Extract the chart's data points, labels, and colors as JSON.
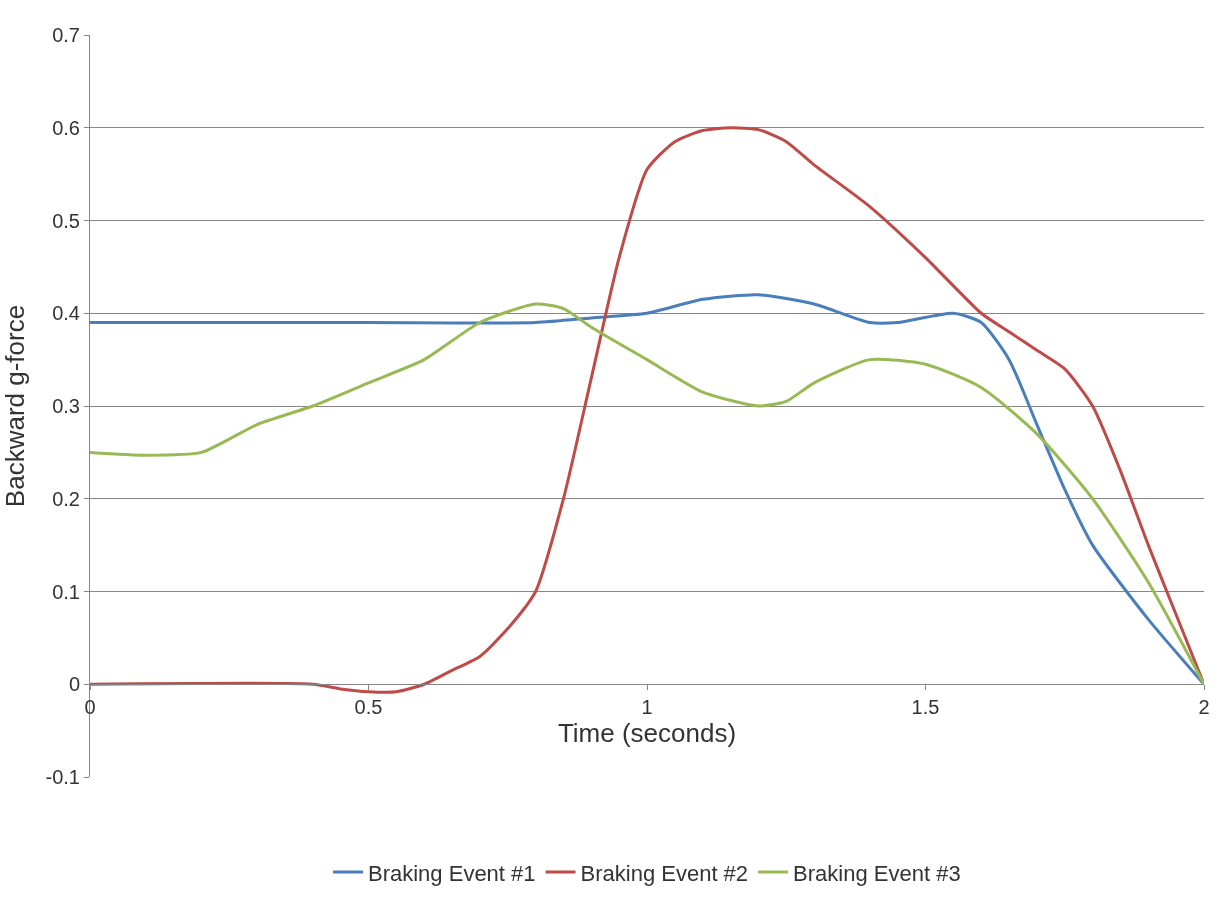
{
  "chart_data": {
    "type": "line",
    "xlabel": "Time (seconds)",
    "ylabel": "Backward g-force",
    "xlim": [
      0,
      2
    ],
    "xticks": [
      0,
      0.5,
      1,
      1.5,
      2
    ],
    "ylim": [
      -0.1,
      0.7
    ],
    "yticks": [
      -0.1,
      0,
      0.1,
      0.2,
      0.3,
      0.4,
      0.5,
      0.6,
      0.7
    ],
    "grid": "y",
    "legend": "bottom",
    "marker": "none",
    "line_style": "solid",
    "series": [
      {
        "name": "Braking Event #1",
        "color": "#4a7ebb",
        "x": [
          0,
          0.5,
          0.8,
          0.9,
          1.0,
          1.1,
          1.2,
          1.3,
          1.4,
          1.45,
          1.55,
          1.6,
          1.65,
          1.7,
          1.75,
          1.8,
          1.9,
          2
        ],
        "values": [
          0.39,
          0.39,
          0.39,
          0.395,
          0.4,
          0.415,
          0.42,
          0.41,
          0.39,
          0.39,
          0.4,
          0.39,
          0.35,
          0.28,
          0.21,
          0.15,
          0.07,
          0
        ]
      },
      {
        "name": "Braking Event #2",
        "color": "#be4b48",
        "x": [
          0,
          0.4,
          0.45,
          0.5,
          0.55,
          0.6,
          0.65,
          0.7,
          0.75,
          0.8,
          0.85,
          0.9,
          0.95,
          1.0,
          1.05,
          1.1,
          1.15,
          1.2,
          1.25,
          1.3,
          1.4,
          1.5,
          1.6,
          1.65,
          1.7,
          1.75,
          1.8,
          1.85,
          1.9,
          1.95,
          2
        ],
        "values": [
          0,
          0,
          -0.005,
          -0.008,
          -0.008,
          0,
          0.015,
          0.03,
          0.06,
          0.1,
          0.2,
          0.33,
          0.46,
          0.555,
          0.585,
          0.597,
          0.6,
          0.598,
          0.585,
          0.56,
          0.515,
          0.46,
          0.4,
          0.38,
          0.36,
          0.34,
          0.3,
          0.23,
          0.15,
          0.075,
          0
        ]
      },
      {
        "name": "Braking Event #3",
        "color": "#98b954",
        "x": [
          0,
          0.1,
          0.2,
          0.3,
          0.4,
          0.5,
          0.6,
          0.7,
          0.8,
          0.85,
          0.9,
          1.0,
          1.1,
          1.2,
          1.25,
          1.3,
          1.4,
          1.5,
          1.6,
          1.7,
          1.8,
          1.9,
          2
        ],
        "values": [
          0.25,
          0.247,
          0.25,
          0.28,
          0.3,
          0.325,
          0.35,
          0.39,
          0.41,
          0.405,
          0.385,
          0.35,
          0.315,
          0.3,
          0.305,
          0.325,
          0.35,
          0.345,
          0.32,
          0.27,
          0.2,
          0.11,
          0
        ]
      }
    ]
  }
}
